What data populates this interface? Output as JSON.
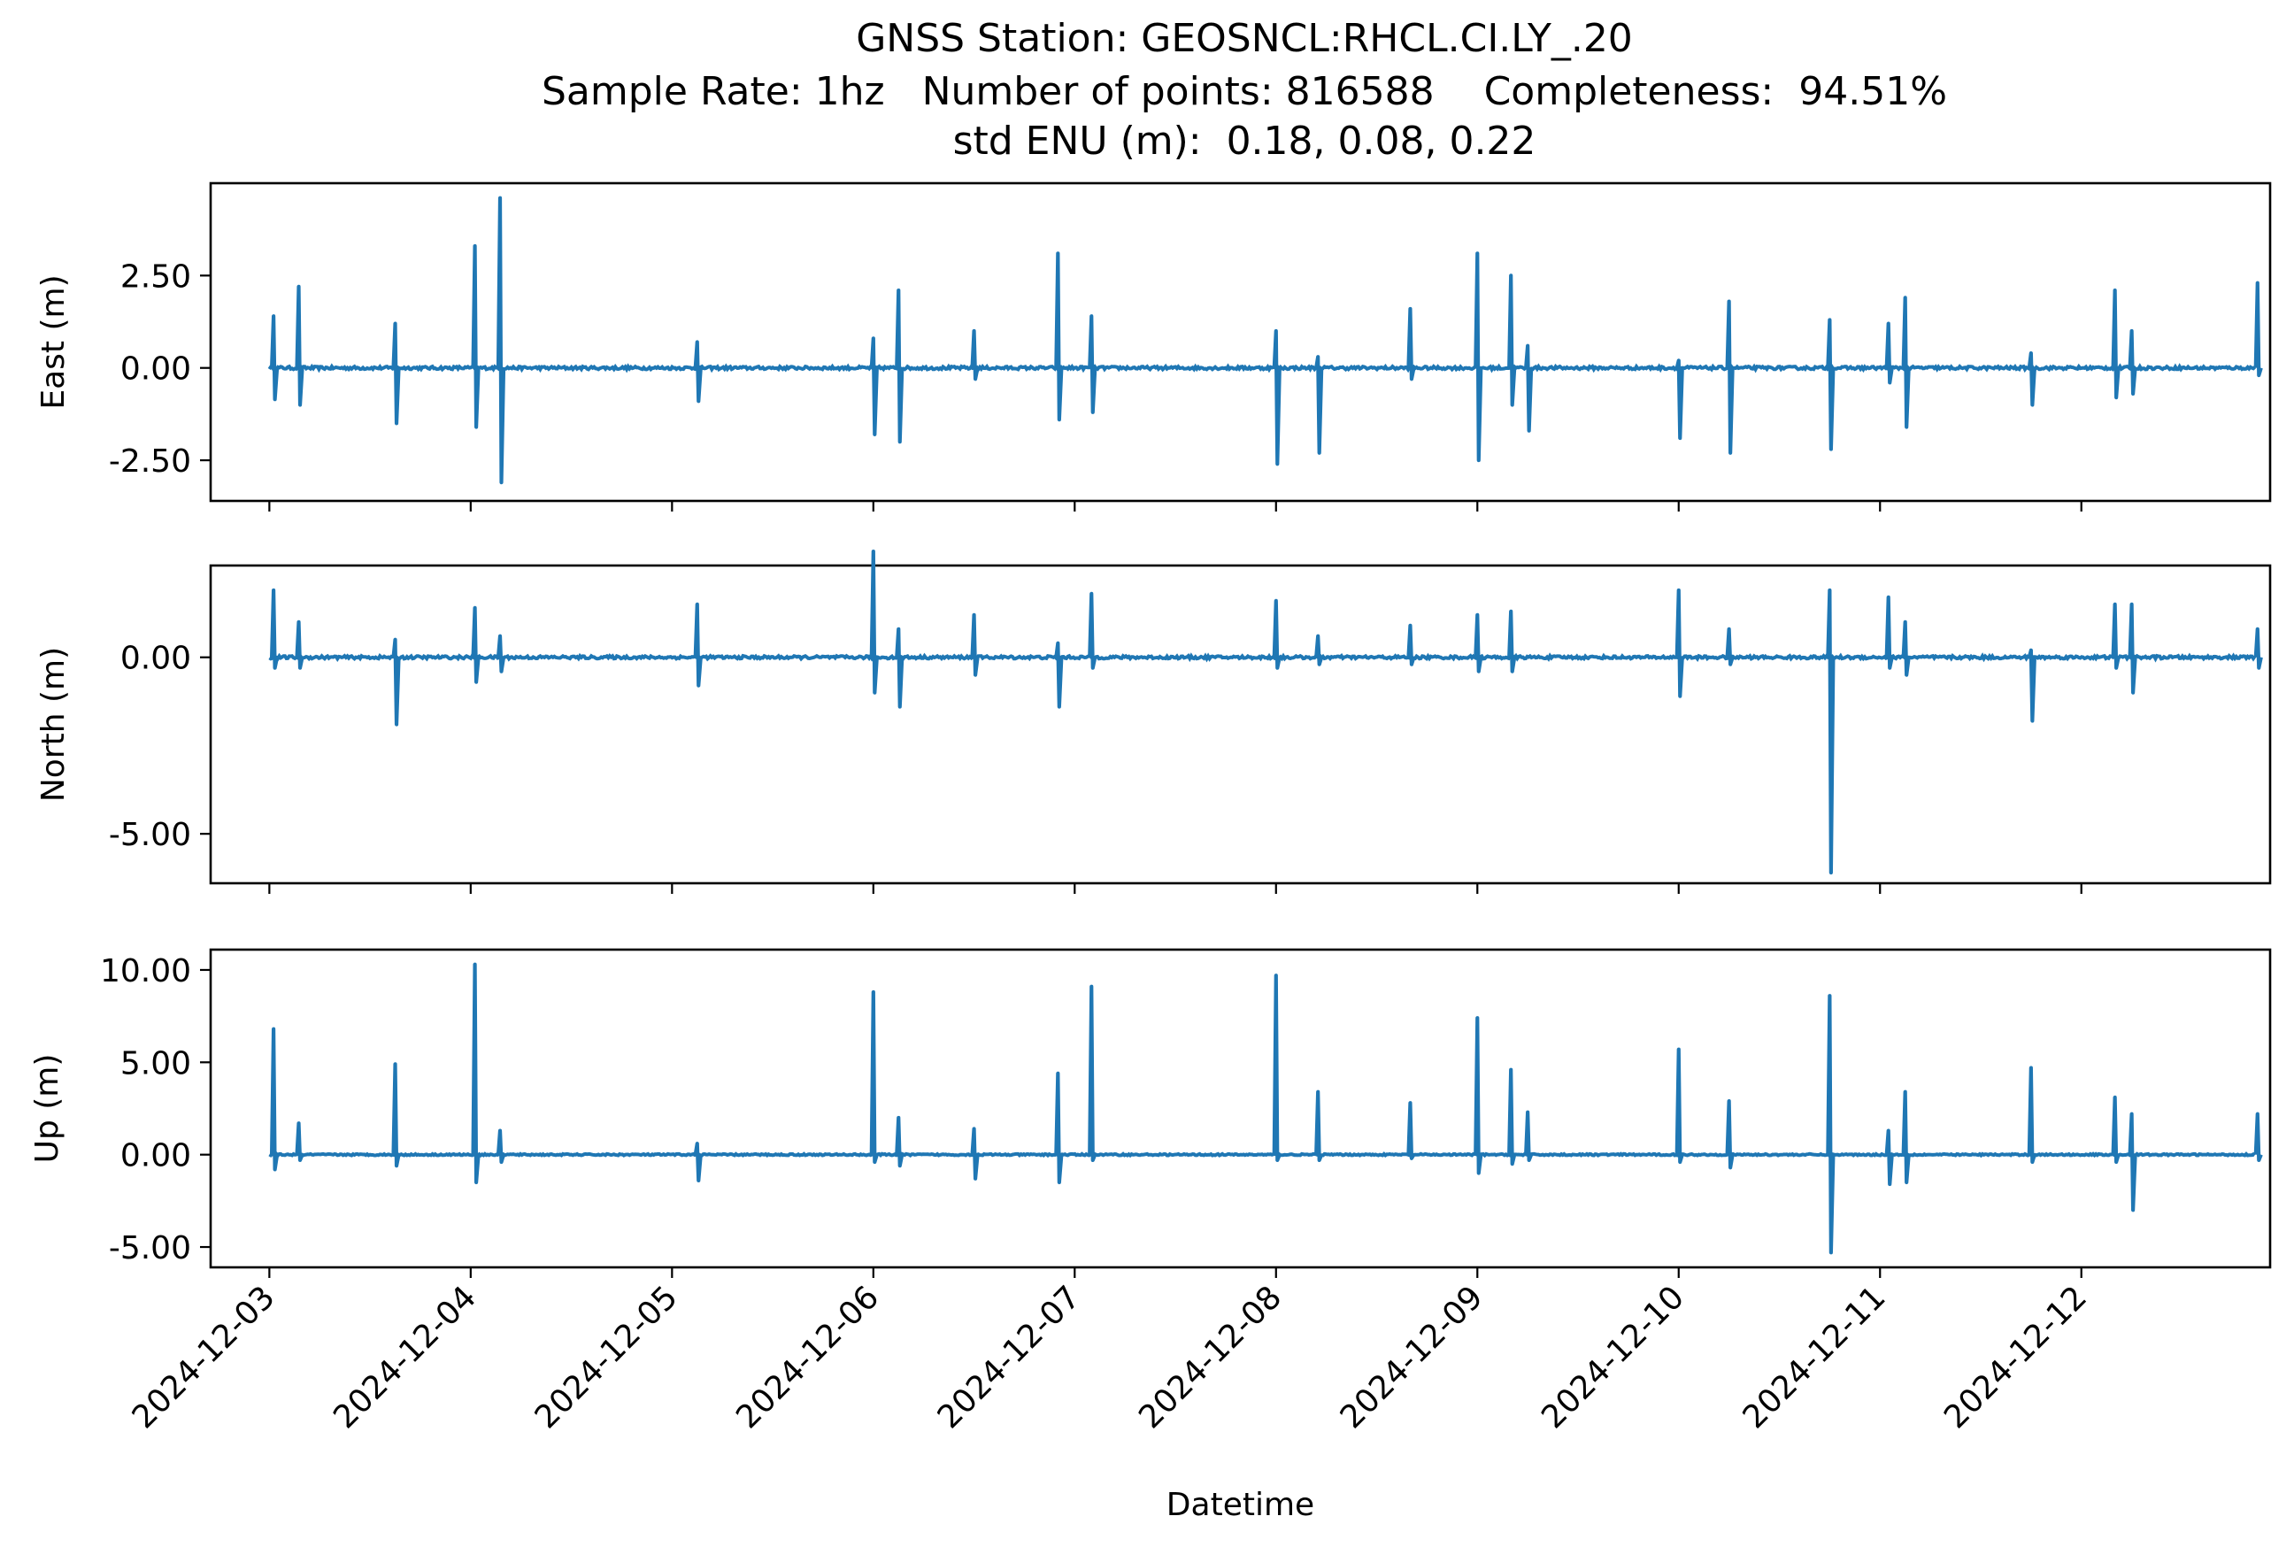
{
  "chart_data": {
    "type": "line",
    "title_lines": [
      "GNSS Station: GEOSNCL:RHCL.CI.LY_.20",
      "Sample Rate: 1hz   Number of points: 816588    Completeness:  94.51%",
      "std ENU (m):  0.18, 0.08, 0.22"
    ],
    "xlabel": "Datetime",
    "x_tick_labels": [
      "2024-12-03",
      "2024-12-04",
      "2024-12-05",
      "2024-12-06",
      "2024-12-07",
      "2024-12-08",
      "2024-12-09",
      "2024-12-10",
      "2024-12-11",
      "2024-12-12"
    ],
    "xlim": [
      "2024-12-02 17:00",
      "2024-12-12 22:30"
    ],
    "line_color": "#1f77b4",
    "panels": [
      {
        "name": "East",
        "ylabel": "East (m)",
        "ylim": [
          -3.6,
          5.0
        ],
        "y_ticks": [
          2.5,
          0.0,
          -2.5
        ],
        "y_tick_labels": [
          "2.50",
          "0.00",
          "-2.50"
        ],
        "spikes": [
          [
            "2024-12-03 00:30",
            -0.85,
            1.4
          ],
          [
            "2024-12-03 03:30",
            -1.0,
            2.2
          ],
          [
            "2024-12-03 15:00",
            -1.5,
            1.2
          ],
          [
            "2024-12-04 00:30",
            -1.6,
            3.3
          ],
          [
            "2024-12-04 03:30",
            -3.1,
            4.6
          ],
          [
            "2024-12-05 03:00",
            -0.9,
            0.7
          ],
          [
            "2024-12-06 00:00",
            -1.8,
            0.8
          ],
          [
            "2024-12-06 03:00",
            -2.0,
            2.1
          ],
          [
            "2024-12-06 12:00",
            -0.3,
            1.0
          ],
          [
            "2024-12-06 22:00",
            -1.4,
            3.1
          ],
          [
            "2024-12-07 02:00",
            -1.2,
            1.4
          ],
          [
            "2024-12-08 00:00",
            -2.6,
            1.0
          ],
          [
            "2024-12-08 05:00",
            -2.3,
            0.3
          ],
          [
            "2024-12-08 16:00",
            -0.3,
            1.6
          ],
          [
            "2024-12-09 00:00",
            -2.5,
            3.1
          ],
          [
            "2024-12-09 04:00",
            -1.0,
            2.5
          ],
          [
            "2024-12-09 06:00",
            -1.7,
            0.6
          ],
          [
            "2024-12-10 00:00",
            -1.9,
            0.2
          ],
          [
            "2024-12-10 06:00",
            -2.3,
            1.8
          ],
          [
            "2024-12-10 18:00",
            -2.2,
            1.3
          ],
          [
            "2024-12-11 01:00",
            -0.4,
            1.2
          ],
          [
            "2024-12-11 03:00",
            -1.6,
            1.9
          ],
          [
            "2024-12-11 18:00",
            -1.0,
            0.4
          ],
          [
            "2024-12-12 04:00",
            -0.8,
            2.1
          ],
          [
            "2024-12-12 06:00",
            -0.7,
            1.0
          ],
          [
            "2024-12-12 21:00",
            -0.2,
            2.3
          ]
        ]
      },
      {
        "name": "North",
        "ylabel": "North (m)",
        "ylim": [
          -6.4,
          2.6
        ],
        "y_ticks": [
          0.0,
          -5.0
        ],
        "y_tick_labels": [
          "0.00",
          "-5.00"
        ],
        "spikes": [
          [
            "2024-12-03 00:30",
            -0.3,
            1.9
          ],
          [
            "2024-12-03 03:30",
            -0.3,
            1.0
          ],
          [
            "2024-12-03 15:00",
            -1.9,
            0.5
          ],
          [
            "2024-12-04 00:30",
            -0.7,
            1.4
          ],
          [
            "2024-12-04 03:30",
            -0.4,
            0.6
          ],
          [
            "2024-12-05 03:00",
            -0.8,
            1.5
          ],
          [
            "2024-12-06 00:00",
            -1.0,
            3.0
          ],
          [
            "2024-12-06 03:00",
            -1.4,
            0.8
          ],
          [
            "2024-12-06 12:00",
            -0.5,
            1.2
          ],
          [
            "2024-12-06 22:00",
            -1.4,
            0.4
          ],
          [
            "2024-12-07 02:00",
            -0.3,
            1.8
          ],
          [
            "2024-12-08 00:00",
            -0.3,
            1.6
          ],
          [
            "2024-12-08 05:00",
            -0.2,
            0.6
          ],
          [
            "2024-12-08 16:00",
            -0.2,
            0.9
          ],
          [
            "2024-12-09 00:00",
            -0.4,
            1.2
          ],
          [
            "2024-12-09 04:00",
            -0.4,
            1.3
          ],
          [
            "2024-12-10 00:00",
            -1.1,
            1.9
          ],
          [
            "2024-12-10 06:00",
            -0.2,
            0.8
          ],
          [
            "2024-12-10 18:00",
            -6.1,
            1.9
          ],
          [
            "2024-12-11 01:00",
            -0.3,
            1.7
          ],
          [
            "2024-12-11 03:00",
            -0.5,
            1.0
          ],
          [
            "2024-12-11 18:00",
            -1.8,
            0.2
          ],
          [
            "2024-12-12 04:00",
            -0.3,
            1.5
          ],
          [
            "2024-12-12 06:00",
            -1.0,
            1.5
          ],
          [
            "2024-12-12 21:00",
            -0.3,
            0.8
          ]
        ]
      },
      {
        "name": "Up",
        "ylabel": "Up (m)",
        "ylim": [
          -6.1,
          11.1
        ],
        "y_ticks": [
          10.0,
          5.0,
          0.0,
          -5.0
        ],
        "y_tick_labels": [
          "10.00",
          "5.00",
          "0.00",
          "-5.00"
        ],
        "spikes": [
          [
            "2024-12-03 00:30",
            -0.8,
            6.8
          ],
          [
            "2024-12-03 03:30",
            -0.3,
            1.7
          ],
          [
            "2024-12-03 15:00",
            -0.6,
            4.9
          ],
          [
            "2024-12-04 00:30",
            -1.5,
            10.3
          ],
          [
            "2024-12-04 03:30",
            -0.4,
            1.3
          ],
          [
            "2024-12-05 03:00",
            -1.4,
            0.6
          ],
          [
            "2024-12-06 00:00",
            -0.4,
            8.8
          ],
          [
            "2024-12-06 03:00",
            -0.6,
            2.0
          ],
          [
            "2024-12-06 12:00",
            -1.3,
            1.4
          ],
          [
            "2024-12-06 22:00",
            -1.5,
            4.4
          ],
          [
            "2024-12-07 02:00",
            -0.3,
            9.1
          ],
          [
            "2024-12-08 00:00",
            -0.3,
            9.7
          ],
          [
            "2024-12-08 05:00",
            -0.3,
            3.4
          ],
          [
            "2024-12-08 16:00",
            -0.2,
            2.8
          ],
          [
            "2024-12-09 00:00",
            -1.0,
            7.4
          ],
          [
            "2024-12-09 04:00",
            -0.5,
            4.6
          ],
          [
            "2024-12-09 06:00",
            -0.3,
            2.3
          ],
          [
            "2024-12-10 00:00",
            -0.4,
            5.7
          ],
          [
            "2024-12-10 06:00",
            -0.7,
            2.9
          ],
          [
            "2024-12-10 18:00",
            -5.3,
            8.6
          ],
          [
            "2024-12-11 01:00",
            -1.6,
            1.3
          ],
          [
            "2024-12-11 03:00",
            -1.5,
            3.4
          ],
          [
            "2024-12-11 18:00",
            -0.4,
            4.7
          ],
          [
            "2024-12-12 04:00",
            -0.4,
            3.1
          ],
          [
            "2024-12-12 06:00",
            -3.0,
            2.2
          ],
          [
            "2024-12-12 21:00",
            -0.3,
            2.2
          ]
        ]
      }
    ]
  }
}
